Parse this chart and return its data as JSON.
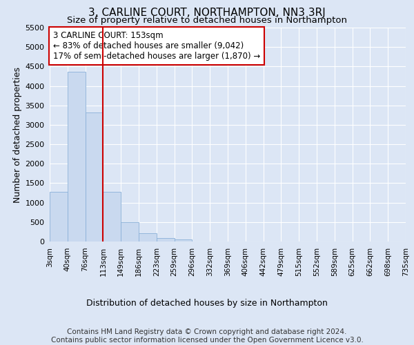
{
  "title": "3, CARLINE COURT, NORTHAMPTON, NN3 3RJ",
  "subtitle": "Size of property relative to detached houses in Northampton",
  "xlabel": "Distribution of detached houses by size in Northampton",
  "ylabel": "Number of detached properties",
  "bar_values": [
    1270,
    4360,
    3310,
    1270,
    490,
    215,
    90,
    60,
    0,
    0,
    0,
    0,
    0,
    0,
    0,
    0,
    0,
    0,
    0,
    0
  ],
  "bin_labels": [
    "3sqm",
    "40sqm",
    "76sqm",
    "113sqm",
    "149sqm",
    "186sqm",
    "223sqm",
    "259sqm",
    "296sqm",
    "332sqm",
    "369sqm",
    "406sqm",
    "442sqm",
    "479sqm",
    "515sqm",
    "552sqm",
    "589sqm",
    "625sqm",
    "662sqm",
    "698sqm",
    "735sqm"
  ],
  "bar_color": "#c9d9ef",
  "bar_edge_color": "#8ab0d8",
  "vline_x": 3.0,
  "vline_color": "#cc0000",
  "annotation_text": "3 CARLINE COURT: 153sqm\n← 83% of detached houses are smaller (9,042)\n17% of semi-detached houses are larger (1,870) →",
  "annotation_box_color": "#ffffff",
  "annotation_box_edge": "#cc0000",
  "ylim": [
    0,
    5500
  ],
  "yticks": [
    0,
    500,
    1000,
    1500,
    2000,
    2500,
    3000,
    3500,
    4000,
    4500,
    5000,
    5500
  ],
  "fig_bg_color": "#dce6f5",
  "plot_bg_color": "#dce6f5",
  "grid_color": "#ffffff",
  "footer_text": "Contains HM Land Registry data © Crown copyright and database right 2024.\nContains public sector information licensed under the Open Government Licence v3.0.",
  "title_fontsize": 11,
  "subtitle_fontsize": 9.5,
  "xlabel_fontsize": 9,
  "ylabel_fontsize": 9,
  "annotation_fontsize": 8.5,
  "footer_fontsize": 7.5
}
